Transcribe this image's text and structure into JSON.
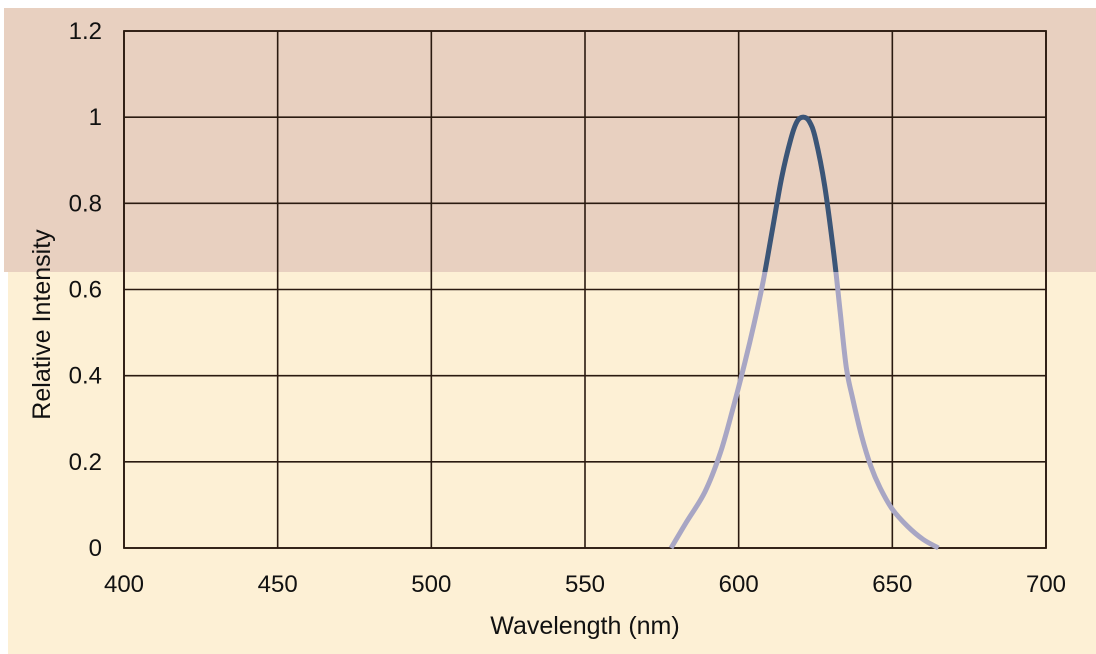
{
  "chart_data": {
    "type": "line",
    "title": "",
    "xlabel": "Wavelength (nm)",
    "ylabel": "Relative Intensity",
    "xlim": [
      400,
      700
    ],
    "ylim": [
      0,
      1.2
    ],
    "x_ticks": [
      400,
      450,
      500,
      550,
      600,
      650,
      700
    ],
    "x_tick_labels": [
      "400",
      "450",
      "500",
      "550",
      "600",
      "650",
      "700"
    ],
    "y_ticks": [
      0,
      0.2,
      0.4,
      0.6,
      0.8,
      1.0,
      1.2
    ],
    "y_tick_labels": [
      "0",
      "0.2",
      "0.4",
      "0.6",
      "0.8",
      "1",
      "1.2"
    ],
    "grid": true,
    "legend": "none",
    "series": [
      {
        "color": "#3b5577",
        "x": [
          578,
          583,
          589,
          594,
          598,
          602,
          605,
          608,
          611,
          614,
          617,
          619,
          621,
          623,
          625,
          628,
          631,
          633,
          635,
          637,
          640,
          643,
          646,
          650,
          655,
          660,
          665
        ],
        "y": [
          0.0,
          0.06,
          0.13,
          0.22,
          0.32,
          0.43,
          0.52,
          0.62,
          0.74,
          0.86,
          0.95,
          0.99,
          1.0,
          0.99,
          0.95,
          0.84,
          0.68,
          0.55,
          0.42,
          0.35,
          0.26,
          0.19,
          0.14,
          0.09,
          0.05,
          0.02,
          0.0
        ]
      }
    ],
    "colors": {
      "plot_background_upper": "#e8d0c0",
      "plot_background_lower": "#fdf0d5",
      "grid": "#2a1a10",
      "axis": "#2a1a10",
      "curve_dark": "#3b5577",
      "curve_light": "#a8a6c4"
    }
  }
}
